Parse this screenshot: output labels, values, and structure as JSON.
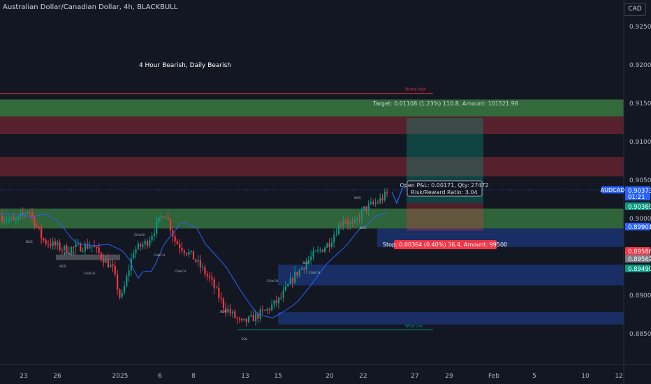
{
  "header": {
    "title": "Australian Dollar/Canadian Dollar, 4h, BLACKBULL",
    "currency_button": "CAD"
  },
  "chart_data": {
    "type": "candlestick",
    "symbol": "AUDCAD",
    "annotation": "4 Hour Bearish, Daily Bearish",
    "y_ticks": [
      0.925,
      0.92,
      0.915,
      0.91,
      0.905,
      0.9,
      0.895,
      0.89,
      0.885
    ],
    "y_tick_labels": [
      "0.92500",
      "0.92000",
      "0.91500",
      "0.91000",
      "0.90500",
      "0.90000",
      "0.89500",
      "0.89000",
      "0.88500"
    ],
    "ylim": [
      0.8815,
      0.9285
    ],
    "x_tick_labels": [
      "23",
      "26",
      "2025",
      "6",
      "8",
      "13",
      "15",
      "20",
      "22",
      "27",
      "29",
      "Feb",
      "5",
      "10",
      "12"
    ],
    "price_labels": [
      {
        "label": "AUDCAD",
        "value": "0.90373",
        "sub": "01:21",
        "color": "#2962ff"
      },
      {
        "value": "0.90369",
        "color": "#089981"
      },
      {
        "value": "0.89901",
        "color": "#2962ff"
      },
      {
        "value": "0.89586",
        "color": "#f23645"
      },
      {
        "value": "0.89562",
        "color": "#787b86"
      },
      {
        "value": "0.89490",
        "color": "#089981"
      }
    ],
    "position": {
      "target_label": "Target: 0.01108 (1.23%) 110.8, Amount: 101521.98",
      "pnl_label": "Open P&L: 0.00171, Qty: 27472",
      "ratio_label": "Risk/Reward Ratio: 3.04",
      "stop_label": "Stop: 0.00364 (0.40%) 36.4, Amount: 99500",
      "entry": 0.902,
      "target": 0.9131,
      "stop": 0.8984
    },
    "levels": [
      {
        "name": "Strong High",
        "value": 0.9163,
        "color": "#f23645"
      },
      {
        "name": "Weak Low",
        "value": 0.8855,
        "color": "#089981"
      }
    ],
    "zone_labels": [
      "BOS",
      "BOS",
      "CHoCH",
      "CHoCH",
      "CHoCH",
      "CHoCH",
      "CHoCH",
      "BOS",
      "EQL",
      "CHoCH",
      "BOS",
      "CHoCH",
      "BOS",
      "BOS"
    ],
    "colors": {
      "up": "#089981",
      "down": "#f23645",
      "ma": "#2962ff"
    }
  }
}
